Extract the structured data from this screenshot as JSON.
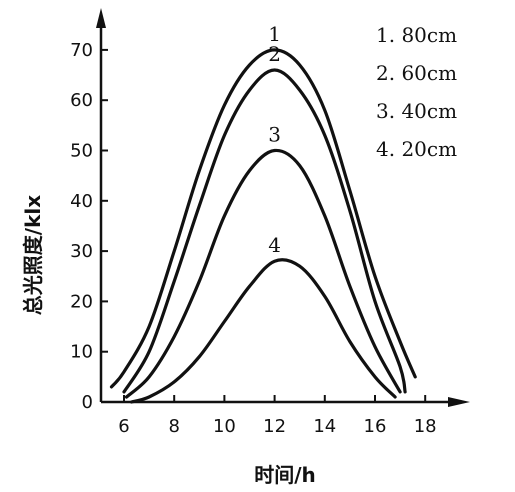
{
  "chart_data": {
    "type": "line",
    "xlabel": "时间/h",
    "ylabel": "总光照度/klx",
    "xlim": [
      5,
      19
    ],
    "ylim": [
      0,
      78
    ],
    "xticks": [
      6,
      8,
      10,
      12,
      14,
      16,
      18
    ],
    "yticks": [
      0,
      10,
      20,
      30,
      40,
      50,
      60,
      70
    ],
    "grid": false,
    "legend": [
      {
        "key": "1",
        "text": "1. 80cm"
      },
      {
        "key": "2",
        "text": "2. 60cm"
      },
      {
        "key": "3",
        "text": "3. 40cm"
      },
      {
        "key": "4",
        "text": "4. 20cm"
      }
    ],
    "legend_position": "top-right",
    "series": [
      {
        "label": "1",
        "x": [
          5.5,
          6.0,
          7.0,
          8.0,
          9.0,
          10.0,
          11.0,
          12.0,
          13.0,
          14.0,
          15.0,
          16.0,
          17.0,
          17.6
        ],
        "y": [
          3,
          6,
          15,
          30,
          46,
          59,
          67,
          70,
          67,
          58,
          42,
          25,
          12,
          5
        ]
      },
      {
        "label": "2",
        "x": [
          6.0,
          7.0,
          8.0,
          9.0,
          10.0,
          11.0,
          12.0,
          13.0,
          14.0,
          15.0,
          16.0,
          17.0,
          17.2
        ],
        "y": [
          2,
          10,
          24,
          39,
          53,
          62,
          66,
          62,
          53,
          38,
          20,
          7,
          2
        ]
      },
      {
        "label": "3",
        "x": [
          6.1,
          7.0,
          8.0,
          9.0,
          10.0,
          11.0,
          12.0,
          13.0,
          14.0,
          15.0,
          16.0,
          17.0
        ],
        "y": [
          1,
          5,
          13,
          24,
          37,
          46,
          50,
          47,
          37,
          23,
          11,
          2
        ]
      },
      {
        "label": "4",
        "x": [
          6.3,
          7.0,
          8.0,
          9.0,
          10.0,
          11.0,
          12.0,
          13.0,
          14.0,
          15.0,
          16.0,
          16.8
        ],
        "y": [
          0,
          1,
          4,
          9,
          16,
          23,
          28,
          27,
          21,
          12,
          5,
          1
        ]
      }
    ]
  }
}
